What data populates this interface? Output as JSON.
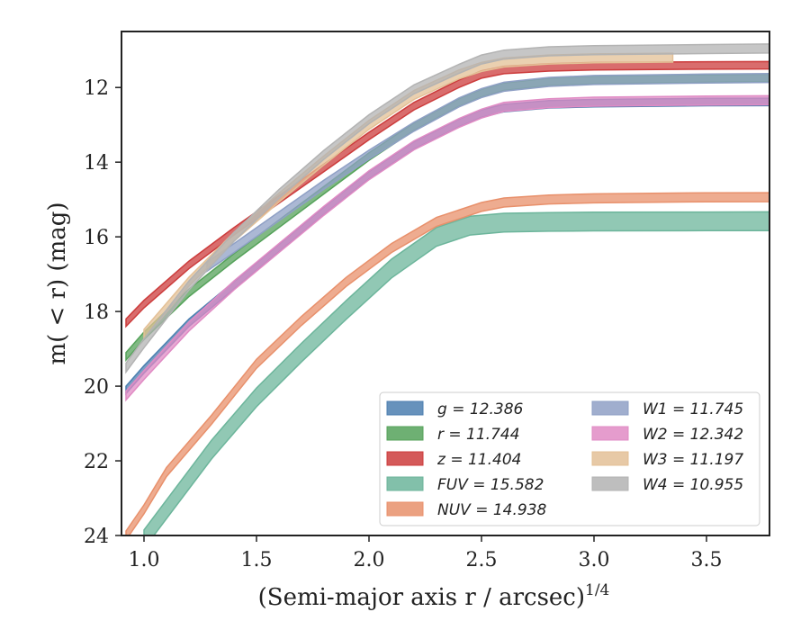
{
  "chart_data": {
    "type": "line",
    "title": "",
    "xlabel": "(Semi-major axis r / arcsec)",
    "xlabel_exponent": "1/4",
    "ylabel": "m( < r) (mag)",
    "xlim": [
      0.9,
      3.78
    ],
    "ylim": [
      24,
      10.5
    ],
    "y_inverted": true,
    "x_ticks": [
      1.0,
      1.5,
      2.0,
      2.5,
      3.0,
      3.5
    ],
    "x_tick_labels": [
      "1.0",
      "1.5",
      "2.0",
      "2.5",
      "3.0",
      "3.5"
    ],
    "y_ticks": [
      12,
      14,
      16,
      18,
      20,
      22,
      24
    ],
    "y_tick_labels": [
      "12",
      "14",
      "16",
      "18",
      "20",
      "22",
      "24"
    ],
    "grid": false,
    "legend_position": "lower-right",
    "legend_columns": 2,
    "series": [
      {
        "name": "g = 12.386",
        "color": "#4c7fb0",
        "band": 0.1,
        "x": [
          0.92,
          1.0,
          1.2,
          1.4,
          1.6,
          1.8,
          2.0,
          2.2,
          2.4,
          2.5,
          2.6,
          2.8,
          3.0,
          3.5,
          3.78
        ],
        "y": [
          20.1,
          19.55,
          18.3,
          17.3,
          16.3,
          15.3,
          14.35,
          13.55,
          12.95,
          12.7,
          12.55,
          12.45,
          12.42,
          12.39,
          12.386
        ]
      },
      {
        "name": "r = 11.744",
        "color": "#55a25a",
        "band": 0.1,
        "x": [
          0.92,
          1.0,
          1.2,
          1.4,
          1.6,
          1.8,
          2.0,
          2.2,
          2.4,
          2.5,
          2.6,
          2.8,
          3.0,
          3.5,
          3.78
        ],
        "y": [
          19.2,
          18.65,
          17.5,
          16.55,
          15.65,
          14.75,
          13.85,
          13.05,
          12.4,
          12.15,
          11.98,
          11.85,
          11.8,
          11.76,
          11.744
        ]
      },
      {
        "name": "z = 11.404",
        "color": "#cc3c3c",
        "band": 0.1,
        "x": [
          0.92,
          1.0,
          1.2,
          1.4,
          1.6,
          1.8,
          2.0,
          2.2,
          2.4,
          2.5,
          2.6,
          2.8,
          3.0,
          3.5,
          3.78
        ],
        "y": [
          18.3,
          17.8,
          16.75,
          15.85,
          15.0,
          14.15,
          13.3,
          12.5,
          11.9,
          11.65,
          11.53,
          11.46,
          11.43,
          11.41,
          11.404
        ]
      },
      {
        "name": "FUV = 15.582",
        "color": "#6cb59b",
        "band": 0.25,
        "x": [
          1.0,
          1.1,
          1.3,
          1.5,
          1.7,
          1.9,
          2.1,
          2.3,
          2.45,
          2.6,
          2.8,
          3.0,
          3.5,
          3.78
        ],
        "y": [
          24.1,
          23.3,
          21.7,
          20.3,
          19.1,
          17.95,
          16.85,
          16.0,
          15.7,
          15.62,
          15.6,
          15.59,
          15.585,
          15.582
        ]
      },
      {
        "name": "NUV = 14.938",
        "color": "#e8906b",
        "band": 0.12,
        "x": [
          0.92,
          1.0,
          1.1,
          1.3,
          1.5,
          1.7,
          1.9,
          2.1,
          2.3,
          2.5,
          2.6,
          2.8,
          3.0,
          3.5,
          3.78
        ],
        "y": [
          24.0,
          23.3,
          22.3,
          20.9,
          19.4,
          18.25,
          17.2,
          16.3,
          15.6,
          15.2,
          15.08,
          15.0,
          14.97,
          14.94,
          14.938
        ]
      },
      {
        "name": "W1 = 11.745",
        "color": "#8fa0c5",
        "band": 0.12,
        "x": [
          1.28,
          1.4,
          1.6,
          1.8,
          2.0,
          2.2,
          2.4,
          2.5,
          2.6,
          2.8,
          3.0,
          3.5,
          3.78
        ],
        "y": [
          16.8,
          16.3,
          15.45,
          14.6,
          13.8,
          13.05,
          12.4,
          12.15,
          11.98,
          11.85,
          11.8,
          11.76,
          11.745
        ]
      },
      {
        "name": "W2 = 12.342",
        "color": "#e08bc4",
        "band": 0.12,
        "x": [
          0.92,
          1.0,
          1.2,
          1.4,
          1.6,
          1.8,
          2.0,
          2.2,
          2.4,
          2.5,
          2.6,
          2.8,
          3.0,
          3.5,
          3.78
        ],
        "y": [
          20.25,
          19.7,
          18.4,
          17.3,
          16.3,
          15.3,
          14.35,
          13.55,
          12.95,
          12.7,
          12.52,
          12.42,
          12.38,
          12.35,
          12.342
        ]
      },
      {
        "name": "W3 = 11.197",
        "color": "#e3c096",
        "band": 0.12,
        "x": [
          1.0,
          1.2,
          1.4,
          1.6,
          1.8,
          2.0,
          2.2,
          2.4,
          2.5,
          2.6,
          2.8,
          3.0,
          3.35
        ],
        "y": [
          18.6,
          17.2,
          16.0,
          14.95,
          13.95,
          13.0,
          12.2,
          11.65,
          11.45,
          11.33,
          11.25,
          11.22,
          11.2
        ]
      },
      {
        "name": "W4 = 10.955",
        "color": "#b3b3b3",
        "band": 0.12,
        "x": [
          0.92,
          1.0,
          1.2,
          1.4,
          1.6,
          1.8,
          2.0,
          2.2,
          2.4,
          2.5,
          2.6,
          2.8,
          3.0,
          3.5,
          3.78
        ],
        "y": [
          19.5,
          18.85,
          17.3,
          16.0,
          14.85,
          13.8,
          12.85,
          12.05,
          11.5,
          11.25,
          11.12,
          11.03,
          11.0,
          10.97,
          10.955
        ]
      }
    ]
  }
}
